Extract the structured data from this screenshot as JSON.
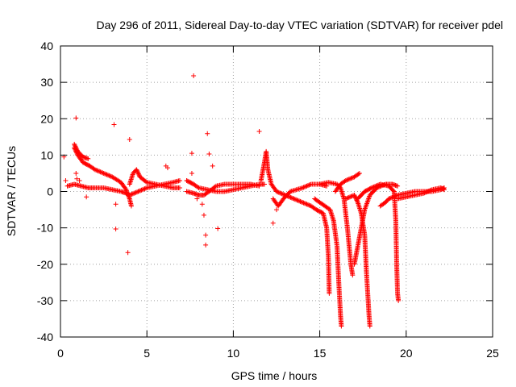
{
  "chart_data": {
    "type": "scatter",
    "title": "Day 296 of 2011, Sidereal Day-to-day VTEC variation (SDTVAR) for receiver pdel",
    "xlabel": "GPS time / hours",
    "ylabel": "SDTVAR / TECUs",
    "xlim": [
      0,
      25
    ],
    "ylim": [
      -40,
      40
    ],
    "xticks": [
      "0",
      "5",
      "10",
      "15",
      "20",
      "25"
    ],
    "yticks": [
      "40",
      "30",
      "20",
      "10",
      "0",
      "-10",
      "-20",
      "-30",
      "-40"
    ],
    "grid": true,
    "marker": "+",
    "color": "#ff0000",
    "series": [
      {
        "name": "SDTVAR",
        "segments": [
          [
            [
              0.4,
              1.5
            ],
            [
              0.8,
              2
            ],
            [
              1.2,
              1.5
            ],
            [
              1.6,
              1
            ],
            [
              2,
              1
            ],
            [
              2.5,
              1
            ],
            [
              3,
              0.5
            ],
            [
              3.5,
              0
            ],
            [
              3.8,
              -0.5
            ],
            [
              4,
              -1
            ]
          ],
          [
            [
              0.8,
              12
            ],
            [
              1,
              10
            ],
            [
              1.3,
              8
            ],
            [
              1.7,
              7
            ],
            [
              2,
              6
            ],
            [
              2.5,
              5
            ],
            [
              3,
              4
            ],
            [
              3.5,
              2.5
            ],
            [
              3.8,
              0.5
            ],
            [
              4,
              -2
            ],
            [
              4.1,
              -4
            ]
          ],
          [
            [
              0.8,
              13
            ],
            [
              1,
              11
            ],
            [
              1.3,
              9.5
            ],
            [
              1.6,
              9
            ]
          ],
          [
            [
              4,
              2
            ],
            [
              4.2,
              5
            ],
            [
              4.4,
              6
            ],
            [
              4.6,
              4
            ],
            [
              5,
              2.5
            ],
            [
              5.5,
              2
            ],
            [
              6,
              1.5
            ],
            [
              6.5,
              1
            ],
            [
              6.9,
              1
            ]
          ],
          [
            [
              4,
              -1
            ],
            [
              4.5,
              0
            ],
            [
              5,
              1
            ],
            [
              5.5,
              1.5
            ],
            [
              6,
              2
            ],
            [
              6.5,
              2.5
            ],
            [
              6.9,
              3
            ]
          ],
          [
            [
              7.3,
              3
            ],
            [
              7.7,
              2
            ],
            [
              8,
              1
            ],
            [
              8.5,
              0.5
            ],
            [
              9,
              0
            ],
            [
              9.5,
              0
            ],
            [
              10,
              0.5
            ],
            [
              10.5,
              1
            ],
            [
              11,
              1.5
            ],
            [
              11.5,
              2
            ],
            [
              11.8,
              2
            ]
          ],
          [
            [
              7.3,
              0
            ],
            [
              7.7,
              -0.5
            ],
            [
              8,
              -1
            ],
            [
              8.3,
              -1
            ],
            [
              8.6,
              0
            ],
            [
              9,
              1.5
            ],
            [
              9.5,
              2
            ],
            [
              10,
              2
            ],
            [
              10.5,
              2
            ],
            [
              11,
              2
            ],
            [
              11.5,
              1.5
            ]
          ],
          [
            [
              11.6,
              3
            ],
            [
              11.8,
              8
            ],
            [
              11.9,
              11
            ],
            [
              12,
              6
            ],
            [
              12.2,
              2
            ],
            [
              12.5,
              0
            ],
            [
              13,
              -1
            ],
            [
              13.5,
              -2
            ],
            [
              14,
              -3
            ],
            [
              14.5,
              -4
            ],
            [
              14.8,
              -5
            ],
            [
              15.2,
              -6
            ],
            [
              15.4,
              -10
            ],
            [
              15.5,
              -18
            ],
            [
              15.55,
              -28
            ]
          ],
          [
            [
              12.3,
              -2
            ],
            [
              12.6,
              -4
            ],
            [
              12.9,
              -2
            ],
            [
              13.3,
              0
            ],
            [
              14,
              1
            ],
            [
              14.5,
              2
            ],
            [
              15,
              2
            ],
            [
              15.4,
              1.5
            ]
          ],
          [
            [
              14.7,
              -2
            ],
            [
              15,
              -3
            ],
            [
              15.3,
              -4
            ],
            [
              15.6,
              -5
            ],
            [
              15.8,
              -8
            ],
            [
              16,
              -15
            ],
            [
              16.1,
              -25
            ],
            [
              16.2,
              -34
            ],
            [
              16.25,
              -37
            ]
          ],
          [
            [
              15,
              2
            ],
            [
              15.5,
              2.5
            ],
            [
              16,
              2
            ],
            [
              16.2,
              1
            ],
            [
              16.4,
              -2
            ],
            [
              16.6,
              -10
            ],
            [
              16.8,
              -20
            ],
            [
              16.9,
              -23
            ]
          ],
          [
            [
              15.9,
              0
            ],
            [
              16.2,
              2
            ],
            [
              16.5,
              3
            ],
            [
              17,
              4
            ],
            [
              17.3,
              5
            ]
          ],
          [
            [
              16.5,
              -2
            ],
            [
              17,
              -1
            ],
            [
              17.2,
              -3
            ],
            [
              17.4,
              -6
            ],
            [
              17.6,
              -12
            ],
            [
              17.7,
              -22
            ],
            [
              17.8,
              -30
            ],
            [
              17.85,
              -34
            ],
            [
              17.9,
              -37
            ]
          ],
          [
            [
              17,
              -20
            ],
            [
              17.2,
              -15
            ],
            [
              17.4,
              -10
            ],
            [
              17.6,
              -5
            ],
            [
              17.9,
              -1
            ],
            [
              18.3,
              1
            ],
            [
              18.8,
              2
            ],
            [
              19.2,
              2
            ],
            [
              19.5,
              1.5
            ]
          ],
          [
            [
              17.2,
              -2
            ],
            [
              17.6,
              0
            ],
            [
              18,
              1
            ],
            [
              18.5,
              2
            ],
            [
              19,
              1.5
            ],
            [
              19.3,
              0
            ],
            [
              19.4,
              -8
            ],
            [
              19.45,
              -20
            ],
            [
              19.5,
              -28
            ],
            [
              19.55,
              -30
            ]
          ],
          [
            [
              18.5,
              -4
            ],
            [
              18.8,
              -3
            ],
            [
              19,
              -2
            ],
            [
              19.5,
              -1
            ],
            [
              20,
              -0.5
            ],
            [
              20.5,
              0
            ],
            [
              21,
              0
            ],
            [
              21.5,
              0
            ],
            [
              22,
              0.5
            ],
            [
              22.2,
              1
            ]
          ],
          [
            [
              19.5,
              -2
            ],
            [
              20,
              -1.5
            ],
            [
              20.5,
              -1
            ],
            [
              21,
              -0.5
            ],
            [
              21.5,
              0.5
            ],
            [
              22,
              1
            ],
            [
              22.2,
              0.5
            ]
          ]
        ],
        "outliers": [
          [
            0.9,
            20.2
          ],
          [
            3.1,
            18.4
          ],
          [
            4,
            14.3
          ],
          [
            7.7,
            31.8
          ],
          [
            8.5,
            15.9
          ],
          [
            11.5,
            16.5
          ],
          [
            8.6,
            10.3
          ],
          [
            7.6,
            10.5
          ],
          [
            0.9,
            5
          ],
          [
            0.95,
            3.5
          ],
          [
            1.1,
            3
          ],
          [
            3.2,
            -3.5
          ],
          [
            3.2,
            -10.3
          ],
          [
            3.9,
            -16.8
          ],
          [
            7.6,
            5
          ],
          [
            8.8,
            7
          ],
          [
            9.1,
            -10.2
          ],
          [
            8.4,
            -12
          ],
          [
            8.4,
            -14.7
          ],
          [
            8.2,
            -3.5
          ],
          [
            8.3,
            -6.5
          ],
          [
            7.9,
            -2
          ],
          [
            12.3,
            -8.7
          ],
          [
            6.1,
            7
          ],
          [
            6.2,
            6.5
          ],
          [
            12.5,
            -5
          ],
          [
            1.5,
            -1.5
          ],
          [
            0.3,
            3
          ],
          [
            0.2,
            9.5
          ]
        ]
      }
    ]
  }
}
